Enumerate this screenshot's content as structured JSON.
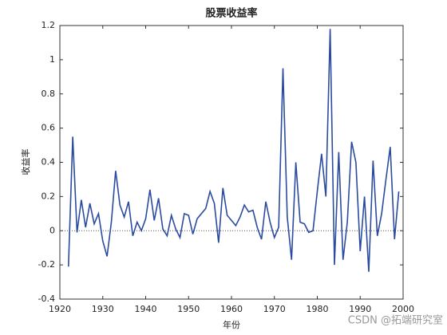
{
  "chart_data": {
    "type": "line",
    "title": "股票收益率",
    "x_label": "年份",
    "y_label": "收益率",
    "x": [
      1922,
      1923,
      1924,
      1925,
      1926,
      1927,
      1928,
      1929,
      1930,
      1931,
      1932,
      1933,
      1934,
      1935,
      1936,
      1937,
      1938,
      1939,
      1940,
      1941,
      1942,
      1943,
      1944,
      1945,
      1946,
      1947,
      1948,
      1949,
      1950,
      1951,
      1952,
      1953,
      1954,
      1955,
      1956,
      1957,
      1958,
      1959,
      1960,
      1961,
      1962,
      1963,
      1964,
      1965,
      1966,
      1967,
      1968,
      1969,
      1970,
      1971,
      1972,
      1973,
      1974,
      1975,
      1976,
      1977,
      1978,
      1979,
      1980,
      1981,
      1982,
      1983,
      1984,
      1985,
      1986,
      1987,
      1988,
      1989,
      1990,
      1991,
      1992,
      1993,
      1994,
      1995,
      1996,
      1997,
      1998,
      1999
    ],
    "series": [
      {
        "name": "收益率",
        "color": "#2b4ba0",
        "values": [
          -0.21,
          0.55,
          -0.01,
          0.18,
          0.02,
          0.16,
          0.04,
          0.1,
          -0.06,
          -0.15,
          0.05,
          0.35,
          0.15,
          0.08,
          0.17,
          -0.03,
          0.05,
          0,
          0.07,
          0.24,
          0.06,
          0.19,
          0.01,
          -0.03,
          0.09,
          0.01,
          -0.04,
          0.1,
          0.09,
          -0.02,
          0.07,
          0.1,
          0.13,
          0.23,
          0.16,
          -0.07,
          0.25,
          0.09,
          0.06,
          0.03,
          0.08,
          0.15,
          0.11,
          0.12,
          0.02,
          -0.05,
          0.17,
          0.05,
          -0.04,
          0.02,
          0.95,
          0.08,
          -0.17,
          0.4,
          0.05,
          0.04,
          -0.01,
          0,
          0.23,
          0.45,
          0.2,
          1.18,
          -0.2,
          0.46,
          -0.17,
          0.05,
          0.52,
          0.4,
          -0.12,
          0.2,
          -0.24,
          0.41,
          -0.03,
          0.1,
          0.3,
          0.49,
          -0.05,
          0.23
        ]
      }
    ],
    "xlim": [
      1920,
      2000
    ],
    "xticks": [
      1920,
      1930,
      1940,
      1950,
      1960,
      1970,
      1980,
      1990,
      2000
    ],
    "ylim": [
      -0.4,
      1.2
    ],
    "yticks": [
      -0.4,
      -0.2,
      0,
      0.2,
      0.4,
      0.6,
      0.8,
      1,
      1.2
    ],
    "zero_line": 0,
    "watermark": "CSDN @拓端研究室"
  }
}
